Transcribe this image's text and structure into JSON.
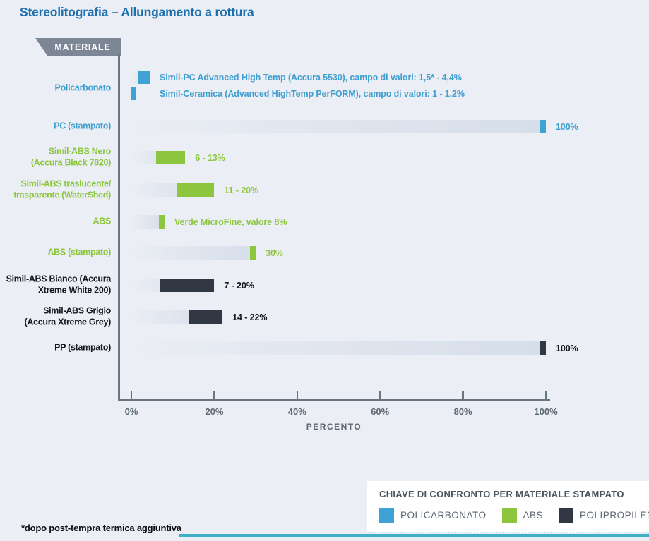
{
  "chart_data": {
    "type": "bar",
    "orientation": "horizontal",
    "title": "Stereolitografia – Allungamento a rottura",
    "axis_label_header": "MATERIALE",
    "xlabel": "PERCENTO",
    "x_ticks": [
      "0%",
      "20%",
      "40%",
      "60%",
      "80%",
      "100%"
    ],
    "xlim": [
      0,
      100
    ],
    "colors": {
      "polycarbonate": "#3fa2d4",
      "abs": "#8cc63f",
      "polypropylene": "#313843",
      "track_light": "#d6deea",
      "title_blue": "#1d6fae",
      "axis_gray": "#6a7582"
    },
    "rows": [
      {
        "label": "Policarbonato",
        "color": "polycarbonate",
        "bars": [
          {
            "range": [
              1.5,
              4.4
            ],
            "note": "Simil-PC Advanced High Temp (Accura 5530), campo di valori: 1,5* - 4,4%"
          },
          {
            "range": [
              1,
              1.2
            ],
            "note": "Simil-Ceramica (Advanced HighTemp PerFORM), campo di valori: 1 - 1,2%"
          }
        ]
      },
      {
        "label": "PC (stampato)",
        "color": "polycarbonate",
        "bars": [
          {
            "range": [
              100,
              100
            ],
            "note": "100%"
          }
        ]
      },
      {
        "label": "Simil-ABS Nero\n(Accura Black 7820)",
        "color": "abs",
        "bars": [
          {
            "range": [
              6,
              13
            ],
            "note": "6 - 13%"
          }
        ]
      },
      {
        "label": "Simil-ABS traslucente/\ntrasparente (WaterShed)",
        "color": "abs",
        "bars": [
          {
            "range": [
              11,
              20
            ],
            "note": "11 - 20%"
          }
        ]
      },
      {
        "label": "ABS",
        "color": "abs",
        "bars": [
          {
            "range": [
              8,
              8
            ],
            "note": "Verde MicroFine, valore 8%"
          }
        ]
      },
      {
        "label": "ABS (stampato)",
        "color": "abs",
        "bars": [
          {
            "range": [
              30,
              30
            ],
            "note": "30%"
          }
        ]
      },
      {
        "label": "Simil-ABS Bianco (Accura\nXtreme White 200)",
        "color": "polypropylene",
        "bars": [
          {
            "range": [
              7,
              20
            ],
            "note": "7 - 20%"
          }
        ]
      },
      {
        "label": "Simil-ABS Grigio\n(Accura Xtreme Grey)",
        "color": "polypropylene",
        "bars": [
          {
            "range": [
              14,
              22
            ],
            "note": "14 - 22%"
          }
        ]
      },
      {
        "label": "PP (stampato)",
        "color": "polypropylene",
        "bars": [
          {
            "range": [
              100,
              100
            ],
            "note": "100%"
          }
        ]
      }
    ],
    "legend": {
      "title": "CHIAVE DI CONFRONTO PER MATERIALE STAMPATO",
      "position": "bottom-right",
      "items": [
        {
          "label": "POLICARBONATO",
          "color_key": "polycarbonate"
        },
        {
          "label": "ABS",
          "color_key": "abs"
        },
        {
          "label": "POLIPROPILENE",
          "color_key": "polypropylene"
        }
      ]
    },
    "footnote": "*dopo post-tempra termica aggiuntiva",
    "grid": false
  }
}
